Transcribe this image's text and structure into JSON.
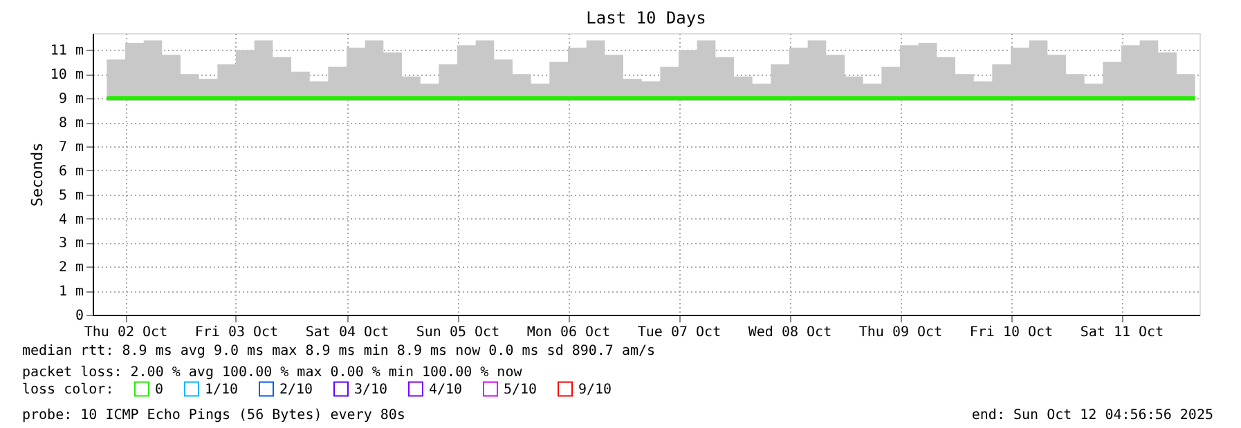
{
  "chart_data": {
    "type": "line",
    "title": "Last 10 Days",
    "ylabel": "Seconds",
    "x": [
      "2025-10-02T08:00",
      "2025-10-02T12:00",
      "2025-10-02T16:00",
      "2025-10-02T20:00",
      "2025-10-03T00:00",
      "2025-10-03T04:00",
      "2025-10-03T08:00",
      "2025-10-03T12:00",
      "2025-10-03T16:00",
      "2025-10-03T20:00",
      "2025-10-04T00:00",
      "2025-10-04T04:00",
      "2025-10-04T08:00",
      "2025-10-04T12:00",
      "2025-10-04T16:00",
      "2025-10-04T20:00",
      "2025-10-05T00:00",
      "2025-10-05T04:00",
      "2025-10-05T08:00",
      "2025-10-05T12:00",
      "2025-10-05T16:00",
      "2025-10-05T20:00",
      "2025-10-06T00:00",
      "2025-10-06T04:00",
      "2025-10-06T08:00",
      "2025-10-06T12:00",
      "2025-10-06T16:00",
      "2025-10-06T20:00",
      "2025-10-07T00:00",
      "2025-10-07T04:00",
      "2025-10-07T08:00",
      "2025-10-07T12:00",
      "2025-10-07T16:00",
      "2025-10-07T20:00",
      "2025-10-08T00:00",
      "2025-10-08T04:00",
      "2025-10-08T08:00",
      "2025-10-08T12:00",
      "2025-10-08T16:00",
      "2025-10-08T20:00",
      "2025-10-09T00:00",
      "2025-10-09T04:00",
      "2025-10-09T08:00",
      "2025-10-09T12:00",
      "2025-10-09T16:00",
      "2025-10-09T20:00",
      "2025-10-10T00:00",
      "2025-10-10T04:00",
      "2025-10-10T08:00",
      "2025-10-10T12:00",
      "2025-10-10T16:00",
      "2025-10-10T20:00",
      "2025-10-11T00:00",
      "2025-10-11T04:00",
      "2025-10-11T08:00",
      "2025-10-11T12:00",
      "2025-10-11T16:00",
      "2025-10-11T20:00",
      "2025-10-12T00:00",
      "2025-10-12T04:00"
    ],
    "series": [
      {
        "name": "0",
        "color": "#22ee00",
        "values": [
          9,
          9,
          9,
          9,
          9,
          9,
          9,
          9,
          9,
          9,
          9,
          9,
          9,
          9,
          9,
          9,
          9,
          9,
          9,
          9,
          9,
          9,
          9,
          9,
          9,
          9,
          9,
          9,
          9,
          9,
          9,
          9,
          9,
          9,
          9,
          9,
          9,
          9,
          9,
          9,
          9,
          9,
          9,
          9,
          9,
          9,
          9,
          9,
          9,
          9,
          9,
          9,
          9,
          9,
          9,
          9,
          9,
          9,
          9,
          9
        ],
        "lower": [
          8.9,
          8.9,
          8.9,
          8.9,
          8.9,
          8.9,
          8.9,
          8.9,
          8.9,
          8.9,
          8.9,
          8.9,
          8.9,
          8.9,
          8.9,
          8.9,
          8.9,
          8.9,
          8.9,
          8.9,
          8.9,
          8.9,
          8.9,
          8.9,
          8.9,
          8.9,
          8.9,
          8.9,
          8.9,
          8.9,
          8.9,
          8.9,
          8.9,
          8.9,
          8.9,
          8.9,
          8.9,
          8.9,
          8.9,
          8.9,
          8.9,
          8.9,
          8.9,
          8.9,
          8.9,
          8.9,
          8.9,
          8.9,
          8.9,
          8.9,
          8.9,
          8.9,
          8.9,
          8.9,
          8.9,
          8.9,
          8.9,
          8.9,
          8.9,
          8.9
        ],
        "upper": [
          10.6,
          11.3,
          11.4,
          10.8,
          10.0,
          9.8,
          10.4,
          11.0,
          11.4,
          10.7,
          10.1,
          9.7,
          10.3,
          11.1,
          11.4,
          10.9,
          9.9,
          9.6,
          10.4,
          11.2,
          11.4,
          10.6,
          10.0,
          9.6,
          10.5,
          11.1,
          11.4,
          10.8,
          9.8,
          9.7,
          10.3,
          11.0,
          11.4,
          10.7,
          9.9,
          9.6,
          10.4,
          11.1,
          11.4,
          10.8,
          9.9,
          9.6,
          10.3,
          11.2,
          11.3,
          10.7,
          10.0,
          9.7,
          10.4,
          11.1,
          11.4,
          10.8,
          10.0,
          9.6,
          10.5,
          11.2,
          11.4,
          10.9,
          10.0,
          9.8
        ]
      },
      {
        "name": "1/10",
        "color": "#00b8ff",
        "values": [
          null,
          null,
          null,
          null,
          null,
          null,
          null,
          null,
          null,
          null,
          null,
          null,
          null,
          null,
          null,
          null,
          null,
          null,
          null,
          null,
          null,
          null,
          null,
          null,
          null,
          null,
          null,
          null,
          null,
          null,
          null,
          null,
          null,
          null,
          null,
          null,
          null,
          null,
          null,
          null,
          null,
          null,
          null,
          null,
          null,
          null,
          null,
          null,
          null,
          null,
          null,
          null,
          null,
          null,
          null,
          null,
          null,
          null,
          null,
          null
        ]
      },
      {
        "name": "2/10",
        "color": "#0059ff",
        "values": [
          null,
          null,
          null,
          null,
          null,
          null,
          null,
          null,
          null,
          null,
          null,
          null,
          null,
          null,
          null,
          null,
          null,
          null,
          null,
          null,
          null,
          null,
          null,
          null,
          null,
          null,
          null,
          null,
          null,
          null,
          null,
          null,
          null,
          null,
          null,
          null,
          null,
          null,
          null,
          null,
          null,
          null,
          null,
          null,
          null,
          null,
          null,
          null,
          null,
          null,
          null,
          null,
          null,
          null,
          null,
          null,
          null,
          null,
          null,
          null
        ]
      },
      {
        "name": "3/10",
        "color": "#5e00ff",
        "values": [
          null,
          null,
          null,
          null,
          null,
          null,
          null,
          null,
          null,
          null,
          null,
          null,
          null,
          null,
          null,
          null,
          null,
          null,
          null,
          null,
          null,
          null,
          null,
          null,
          null,
          null,
          null,
          null,
          null,
          null,
          null,
          null,
          null,
          null,
          null,
          null,
          null,
          null,
          null,
          null,
          null,
          null,
          null,
          null,
          null,
          null,
          null,
          null,
          null,
          null,
          null,
          null,
          null,
          null,
          null,
          null,
          null,
          null,
          null,
          null
        ]
      },
      {
        "name": "4/10",
        "color": "#7e00ff",
        "values": [
          null,
          null,
          null,
          null,
          null,
          null,
          null,
          null,
          null,
          null,
          null,
          null,
          null,
          null,
          null,
          null,
          null,
          null,
          null,
          null,
          null,
          null,
          null,
          null,
          null,
          null,
          null,
          null,
          null,
          null,
          null,
          null,
          null,
          null,
          null,
          null,
          null,
          null,
          null,
          null,
          null,
          null,
          null,
          null,
          null,
          null,
          null,
          null,
          null,
          null,
          null,
          null,
          null,
          null,
          null,
          null,
          null,
          null,
          null,
          null
        ]
      },
      {
        "name": "5/10",
        "color": "#dd00ff",
        "values": [
          null,
          null,
          null,
          null,
          null,
          null,
          null,
          null,
          null,
          null,
          null,
          null,
          null,
          null,
          null,
          null,
          null,
          null,
          null,
          null,
          null,
          null,
          null,
          null,
          null,
          null,
          null,
          null,
          null,
          null,
          null,
          null,
          null,
          null,
          null,
          null,
          null,
          null,
          null,
          null,
          null,
          null,
          null,
          null,
          null,
          null,
          null,
          null,
          null,
          null,
          null,
          null,
          null,
          null,
          null,
          null,
          null,
          null,
          null,
          null
        ]
      },
      {
        "name": "9/10",
        "color": "#ff0000",
        "values": [
          null,
          null,
          null,
          null,
          null,
          null,
          null,
          null,
          null,
          null,
          null,
          null,
          null,
          null,
          null,
          null,
          null,
          null,
          null,
          null,
          null,
          null,
          null,
          null,
          null,
          null,
          null,
          null,
          null,
          null,
          null,
          null,
          null,
          null,
          null,
          null,
          null,
          null,
          null,
          null,
          null,
          null,
          null,
          null,
          null,
          null,
          null,
          null,
          null,
          null,
          null,
          null,
          null,
          null,
          null,
          null,
          null,
          null,
          null,
          null
        ]
      }
    ],
    "legend_title": "loss color:",
    "legend": "bottom",
    "grid": true,
    "marker": "none",
    "line_style": "solid",
    "xlim": [
      "2025-10-02T04:57",
      "2025-10-12T04:57"
    ],
    "xticks": [
      {
        "value": "2025-10-02T12:00",
        "label": "Thu 02 Oct"
      },
      {
        "value": "2025-10-03T12:00",
        "label": "Fri 03 Oct"
      },
      {
        "value": "2025-10-04T12:00",
        "label": "Sat 04 Oct"
      },
      {
        "value": "2025-10-05T12:00",
        "label": "Sun 05 Oct"
      },
      {
        "value": "2025-10-06T12:00",
        "label": "Mon 06 Oct"
      },
      {
        "value": "2025-10-07T12:00",
        "label": "Tue 07 Oct"
      },
      {
        "value": "2025-10-08T12:00",
        "label": "Wed 08 Oct"
      },
      {
        "value": "2025-10-09T12:00",
        "label": "Thu 09 Oct"
      },
      {
        "value": "2025-10-10T12:00",
        "label": "Fri 10 Oct"
      },
      {
        "value": "2025-10-11T12:00",
        "label": "Sat 11 Oct"
      }
    ],
    "ylim": [
      0,
      11.7
    ],
    "yticks": [
      0,
      {
        "value": 1,
        "label": "1 m"
      },
      {
        "value": 2,
        "label": "2 m"
      },
      {
        "value": 3,
        "label": "3 m"
      },
      {
        "value": 4,
        "label": "4 m"
      },
      {
        "value": 5,
        "label": "5 m"
      },
      {
        "value": 6,
        "label": "6 m"
      },
      {
        "value": 7,
        "label": "7 m"
      },
      {
        "value": 8,
        "label": "8 m"
      },
      {
        "value": 9,
        "label": "9 m"
      },
      {
        "value": 10,
        "label": "10 m"
      },
      {
        "value": 11,
        "label": "11 m"
      }
    ],
    "annotations": [
      "median rtt:  8.9 ms avg  9.0 ms max  8.9 ms min  8.9 ms now  0.0 ms sd  890.7   am/s",
      "packet loss: 2.00 % avg  100.00 % max  0.00 % min  100.00 % now",
      "probe:       10 ICMP Echo Pings (56 Bytes) every 80s",
      "end: Sun Oct 12 04:56:56 2025"
    ]
  }
}
